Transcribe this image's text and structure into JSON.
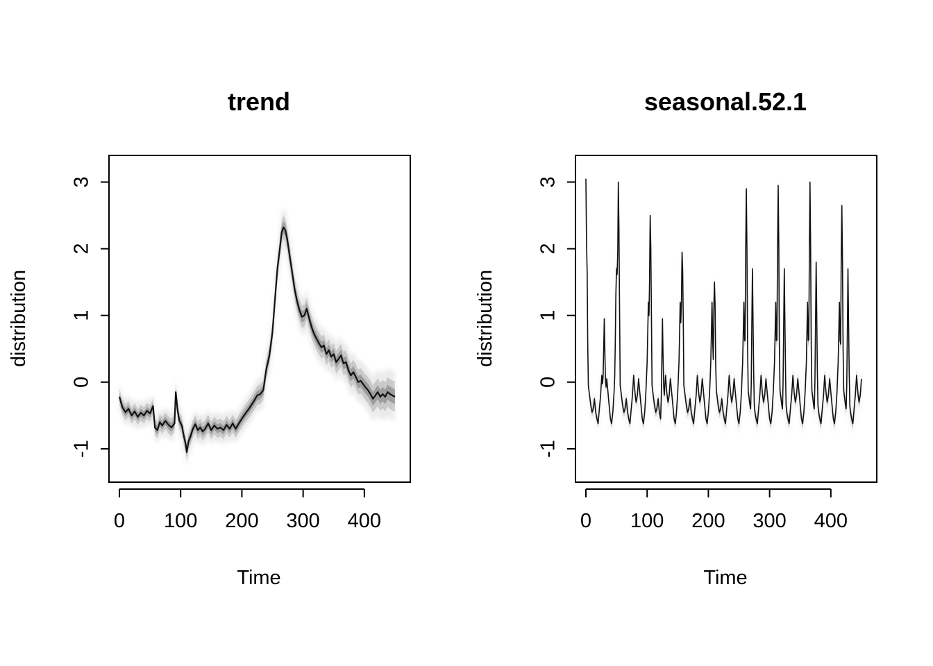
{
  "chart_data": [
    {
      "type": "area",
      "title": "trend",
      "xlabel": "Time",
      "ylabel": "distribution",
      "xlim": [
        -17,
        475
      ],
      "ylim": [
        -1.5,
        3.4
      ],
      "xticks": [
        0,
        100,
        200,
        300,
        400
      ],
      "yticks": [
        -1,
        0,
        1,
        2,
        3
      ],
      "xtick_labels": [
        "0",
        "100",
        "200",
        "300",
        "400"
      ],
      "ytick_labels": [
        "-1",
        "0",
        "1",
        "2",
        "3"
      ],
      "grid": false,
      "legend": "none",
      "line_color": "#111111",
      "band_color": "#000000",
      "median_points": [
        [
          0,
          -0.22
        ],
        [
          5,
          -0.38
        ],
        [
          10,
          -0.45
        ],
        [
          15,
          -0.4
        ],
        [
          20,
          -0.5
        ],
        [
          25,
          -0.44
        ],
        [
          30,
          -0.52
        ],
        [
          35,
          -0.46
        ],
        [
          40,
          -0.5
        ],
        [
          45,
          -0.43
        ],
        [
          50,
          -0.47
        ],
        [
          55,
          -0.36
        ],
        [
          58,
          -0.68
        ],
        [
          62,
          -0.72
        ],
        [
          66,
          -0.6
        ],
        [
          70,
          -0.65
        ],
        [
          75,
          -0.58
        ],
        [
          80,
          -0.64
        ],
        [
          85,
          -0.68
        ],
        [
          90,
          -0.62
        ],
        [
          92,
          -0.15
        ],
        [
          95,
          -0.42
        ],
        [
          98,
          -0.58
        ],
        [
          102,
          -0.65
        ],
        [
          105,
          -0.8
        ],
        [
          108,
          -0.92
        ],
        [
          110,
          -1.05
        ],
        [
          113,
          -0.88
        ],
        [
          116,
          -0.82
        ],
        [
          120,
          -0.7
        ],
        [
          124,
          -0.63
        ],
        [
          128,
          -0.72
        ],
        [
          132,
          -0.68
        ],
        [
          136,
          -0.74
        ],
        [
          140,
          -0.7
        ],
        [
          145,
          -0.62
        ],
        [
          150,
          -0.72
        ],
        [
          155,
          -0.65
        ],
        [
          160,
          -0.7
        ],
        [
          165,
          -0.68
        ],
        [
          170,
          -0.72
        ],
        [
          175,
          -0.64
        ],
        [
          180,
          -0.7
        ],
        [
          185,
          -0.62
        ],
        [
          190,
          -0.7
        ],
        [
          195,
          -0.62
        ],
        [
          200,
          -0.55
        ],
        [
          205,
          -0.48
        ],
        [
          210,
          -0.42
        ],
        [
          215,
          -0.35
        ],
        [
          220,
          -0.28
        ],
        [
          225,
          -0.2
        ],
        [
          230,
          -0.18
        ],
        [
          235,
          -0.12
        ],
        [
          240,
          0.2
        ],
        [
          245,
          0.4
        ],
        [
          250,
          0.75
        ],
        [
          255,
          1.35
        ],
        [
          258,
          1.7
        ],
        [
          262,
          2.0
        ],
        [
          265,
          2.25
        ],
        [
          268,
          2.32
        ],
        [
          271,
          2.28
        ],
        [
          274,
          2.15
        ],
        [
          278,
          1.9
        ],
        [
          282,
          1.65
        ],
        [
          286,
          1.4
        ],
        [
          290,
          1.22
        ],
        [
          294,
          1.08
        ],
        [
          298,
          0.98
        ],
        [
          302,
          1.0
        ],
        [
          306,
          1.1
        ],
        [
          310,
          0.95
        ],
        [
          314,
          0.82
        ],
        [
          318,
          0.72
        ],
        [
          322,
          0.65
        ],
        [
          326,
          0.58
        ],
        [
          330,
          0.52
        ],
        [
          334,
          0.55
        ],
        [
          338,
          0.42
        ],
        [
          342,
          0.48
        ],
        [
          346,
          0.38
        ],
        [
          350,
          0.42
        ],
        [
          354,
          0.3
        ],
        [
          358,
          0.35
        ],
        [
          362,
          0.4
        ],
        [
          366,
          0.28
        ],
        [
          370,
          0.3
        ],
        [
          374,
          0.18
        ],
        [
          378,
          0.1
        ],
        [
          382,
          0.15
        ],
        [
          386,
          0.08
        ],
        [
          390,
          0.0
        ],
        [
          394,
          0.02
        ],
        [
          398,
          -0.03
        ],
        [
          402,
          -0.08
        ],
        [
          406,
          -0.12
        ],
        [
          410,
          -0.18
        ],
        [
          414,
          -0.25
        ],
        [
          418,
          -0.2
        ],
        [
          422,
          -0.15
        ],
        [
          426,
          -0.22
        ],
        [
          430,
          -0.18
        ],
        [
          434,
          -0.22
        ],
        [
          438,
          -0.15
        ],
        [
          442,
          -0.18
        ],
        [
          446,
          -0.2
        ],
        [
          450,
          -0.22
        ]
      ],
      "uncertainty_width": [
        [
          0,
          0.2
        ],
        [
          50,
          0.2
        ],
        [
          100,
          0.22
        ],
        [
          150,
          0.22
        ],
        [
          200,
          0.22
        ],
        [
          240,
          0.25
        ],
        [
          265,
          0.3
        ],
        [
          300,
          0.28
        ],
        [
          350,
          0.28
        ],
        [
          400,
          0.32
        ],
        [
          450,
          0.38
        ]
      ]
    },
    {
      "type": "area",
      "title": "seasonal.52.1",
      "xlabel": "Time",
      "ylabel": "distribution",
      "xlim": [
        -17,
        475
      ],
      "ylim": [
        -1.5,
        3.4
      ],
      "xticks": [
        0,
        100,
        200,
        300,
        400
      ],
      "yticks": [
        -1,
        0,
        1,
        2,
        3
      ],
      "xtick_labels": [
        "0",
        "100",
        "200",
        "300",
        "400"
      ],
      "ytick_labels": [
        "-1",
        "0",
        "1",
        "2",
        "3"
      ],
      "grid": false,
      "legend": "none",
      "line_color": "#111111",
      "band_color": "#000000",
      "period": 52,
      "season_shape": [
        [
          0,
          0.05
        ],
        [
          2,
          1.3
        ],
        [
          4,
          -0.05
        ],
        [
          6,
          -0.2
        ],
        [
          8,
          -0.35
        ],
        [
          10,
          -0.45
        ],
        [
          12,
          -0.4
        ],
        [
          14,
          -0.25
        ],
        [
          16,
          -0.45
        ],
        [
          18,
          -0.55
        ],
        [
          20,
          -0.62
        ],
        [
          22,
          -0.4
        ],
        [
          24,
          -0.2
        ],
        [
          26,
          0.1
        ],
        [
          28,
          -0.15
        ],
        [
          30,
          -0.3
        ],
        [
          32,
          -0.2
        ],
        [
          34,
          0.05
        ],
        [
          36,
          -0.15
        ],
        [
          38,
          -0.35
        ],
        [
          40,
          -0.55
        ],
        [
          42,
          -0.62
        ],
        [
          44,
          -0.45
        ],
        [
          46,
          -0.15
        ],
        [
          48,
          0.3
        ],
        [
          50,
          1.2
        ],
        [
          52,
          0.05
        ]
      ],
      "spikes": [
        [
          0,
          3.05
        ],
        [
          30,
          0.95
        ],
        [
          50,
          1.7
        ],
        [
          53,
          3.0
        ],
        [
          105,
          2.5
        ],
        [
          125,
          0.95
        ],
        [
          157,
          1.95
        ],
        [
          210,
          1.5
        ],
        [
          262,
          2.9
        ],
        [
          272,
          1.7
        ],
        [
          314,
          2.95
        ],
        [
          324,
          1.7
        ],
        [
          366,
          3.0
        ],
        [
          376,
          1.8
        ],
        [
          418,
          2.65
        ],
        [
          428,
          1.7
        ]
      ],
      "uncertainty_width": [
        [
          0,
          0.12
        ],
        [
          450,
          0.16
        ]
      ]
    }
  ]
}
